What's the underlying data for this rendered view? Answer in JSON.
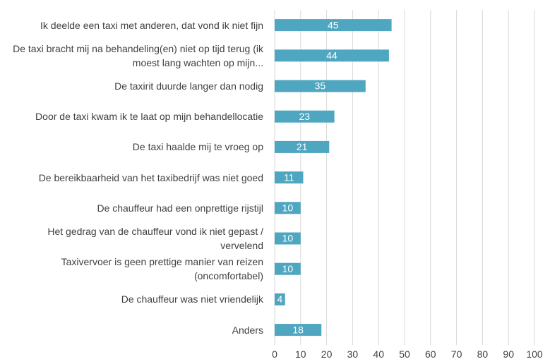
{
  "chart_data": {
    "type": "bar",
    "orientation": "horizontal",
    "categories": [
      "Ik deelde een taxi met anderen, dat vond ik niet fijn",
      "De taxi bracht mij na behandeling(en) niet op tijd terug (ik moest lang wachten op mijn...",
      "De taxirit duurde langer dan nodig",
      "Door de taxi kwam ik te laat op mijn behandellocatie",
      "De taxi haalde mij te vroeg op",
      "De bereikbaarheid van het taxibedrijf was niet goed",
      "De chauffeur had een onprettige rijstijl",
      "Het gedrag van de chauffeur vond ik niet gepast / vervelend",
      "Taxivervoer is geen prettige manier van reizen (oncomfortabel)",
      "De chauffeur was niet vriendelijk",
      "Anders"
    ],
    "values": [
      45,
      44,
      35,
      23,
      21,
      11,
      10,
      10,
      10,
      4,
      18
    ],
    "color": "#4ea6c0",
    "xlim": [
      0,
      100
    ],
    "xticks": [
      0,
      10,
      20,
      30,
      40,
      50,
      60,
      70,
      80,
      90,
      100
    ],
    "grid": true
  }
}
